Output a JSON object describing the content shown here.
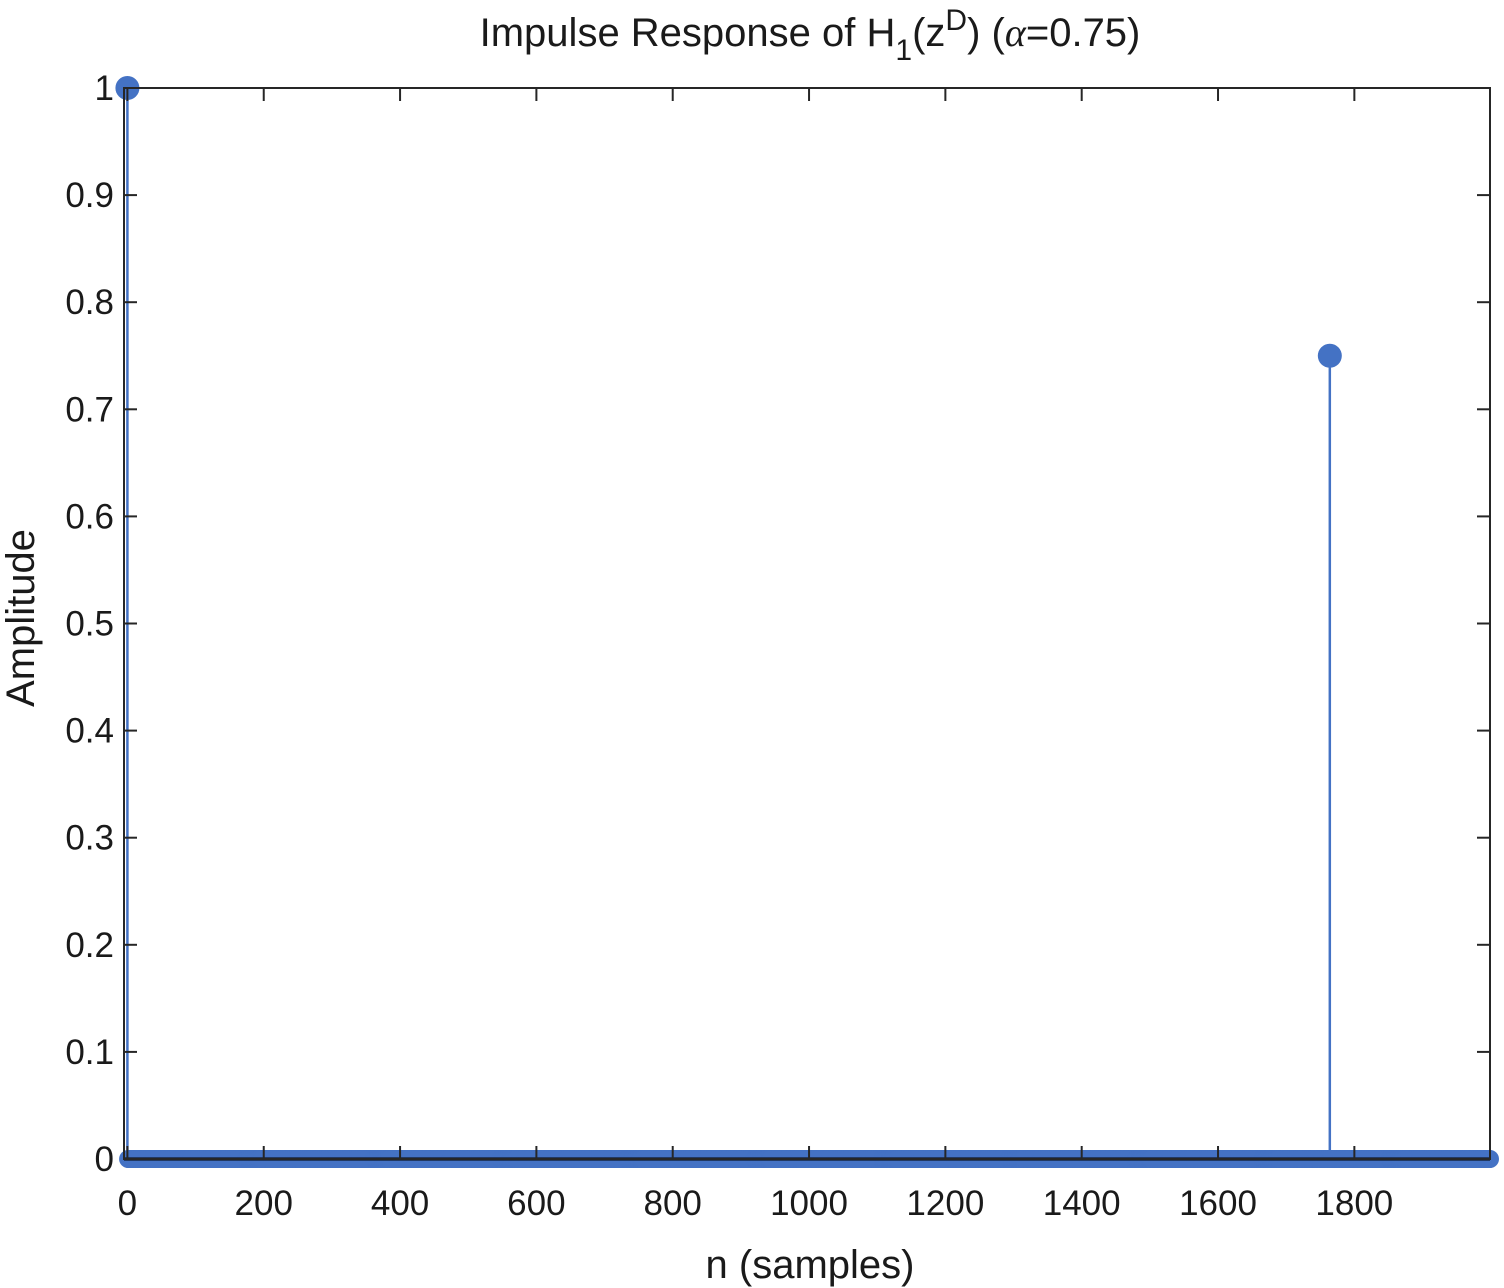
{
  "chart_data": {
    "type": "stem",
    "title": {
      "prefix": "Impulse Response of H",
      "subscript": "1",
      "mid": "(z",
      "superscript": "D",
      "close": ") (",
      "greek": "α",
      "suffix": "=0.75)"
    },
    "xlabel": "n (samples)",
    "ylabel": "Amplitude",
    "xlim": [
      -5,
      1999
    ],
    "ylim": [
      0,
      1
    ],
    "xticks": [
      0,
      200,
      400,
      600,
      800,
      1000,
      1200,
      1400,
      1600,
      1800
    ],
    "yticks": [
      0,
      0.1,
      0.2,
      0.3,
      0.4,
      0.5,
      0.6,
      0.7,
      0.8,
      0.9,
      1
    ],
    "ytick_labels": [
      "0",
      "0.1",
      "0.2",
      "0.3",
      "0.4",
      "0.5",
      "0.6",
      "0.7",
      "0.8",
      "0.9",
      "1"
    ],
    "grid": false,
    "baseline": 0,
    "n_samples": 2000,
    "series": [
      {
        "nonzero_points": [
          {
            "x": 0,
            "y": 1
          },
          {
            "x": 1764,
            "y": 0.75
          }
        ],
        "default_value": 0
      }
    ],
    "colors": {
      "stem": "#4472c4",
      "baseline": "#000000",
      "axes": "#262626"
    }
  }
}
